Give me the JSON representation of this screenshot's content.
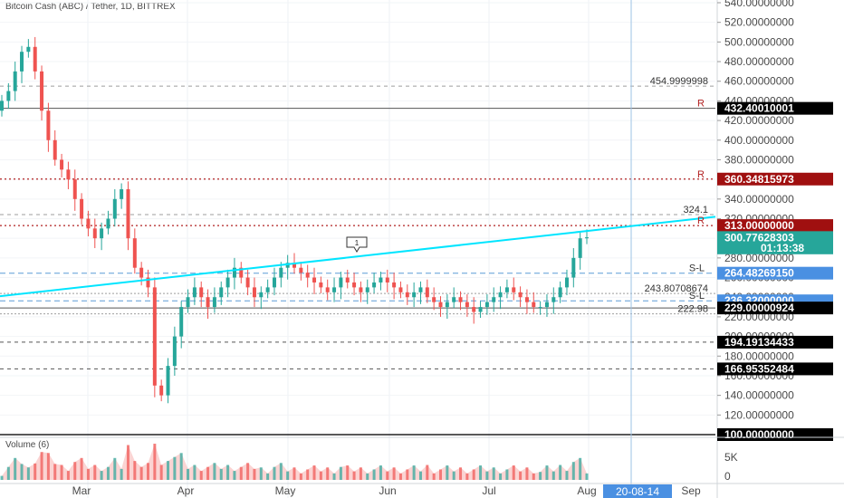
{
  "symbol_title": "Bitcoin Cash (ABC) / Tether, 1D, BITTREX",
  "volume_label": "Volume (6)",
  "colors": {
    "up": "#26a69a",
    "down": "#ef5350",
    "trendline": "#00e5ff",
    "vline": "#9ec3e6",
    "support_blue": "#5b9bd5",
    "resistance": "#b22222",
    "badge_green": "#26a69a",
    "badge_blue": "#4a90e2",
    "badge_black": "#000000",
    "badge_red": "#a01010"
  },
  "price_axis": {
    "min": 100,
    "max": 540,
    "ticks": [
      "540.00000000",
      "520.00000000",
      "500.00000000",
      "480.00000000",
      "460.00000000",
      "440.00000000",
      "420.00000000",
      "400.00000000",
      "380.00000000",
      "360.00000000",
      "340.00000000",
      "320.00000000",
      "300.00000000",
      "280.00000000",
      "260.00000000",
      "240.00000000",
      "220.00000000",
      "200.00000000",
      "180.00000000",
      "160.00000000",
      "140.00000000",
      "120.00000000",
      "100.00000000"
    ]
  },
  "volume_axis": {
    "ticks": [
      "5K",
      "0"
    ]
  },
  "time_axis": {
    "labels": [
      "Mar",
      "Apr",
      "May",
      "Jun",
      "Jul",
      "Aug",
      "Sep"
    ],
    "cursor_label": "20-08-14"
  },
  "price_badges": [
    {
      "name": "badge-432",
      "text": "432.40010001",
      "price": 432.4,
      "style": "black"
    },
    {
      "name": "badge-360",
      "text": "360.34815973",
      "price": 360.35,
      "style": "red"
    },
    {
      "name": "badge-313",
      "text": "313.00000000",
      "price": 313.0,
      "style": "red"
    },
    {
      "name": "badge-current",
      "text": "300.77628303",
      "price": 300.78,
      "style": "green"
    },
    {
      "name": "badge-countdown",
      "text": "01:13:38",
      "price": 290.2,
      "style": "green"
    },
    {
      "name": "badge-264",
      "text": "264.48269150",
      "price": 264.48,
      "style": "blue"
    },
    {
      "name": "badge-236",
      "text": "236.32000000",
      "price": 236.32,
      "style": "blue"
    },
    {
      "name": "badge-229",
      "text": "229.00000924",
      "price": 229.0,
      "style": "black"
    },
    {
      "name": "badge-194",
      "text": "194.19134433",
      "price": 194.19,
      "style": "black"
    },
    {
      "name": "badge-166",
      "text": "166.95352484",
      "price": 166.95,
      "style": "black"
    },
    {
      "name": "badge-100",
      "text": "100.00000000",
      "price": 100.0,
      "style": "black"
    }
  ],
  "level_labels": [
    {
      "text": "454.9999998",
      "price": 455.0
    },
    {
      "text": "R",
      "price": 432.4
    },
    {
      "text": "R",
      "price": 360.35
    },
    {
      "text": "324.1",
      "price": 324.1
    },
    {
      "text": "R",
      "price": 313.0
    },
    {
      "text": "S-L",
      "price": 264.48
    },
    {
      "text": "243.80708674",
      "price": 243.81
    },
    {
      "text": "S-L",
      "price": 236.32
    },
    {
      "text": "222.98",
      "price": 222.98
    }
  ],
  "callout_label": "1",
  "chart_data": {
    "type": "candlestick",
    "title": "Bitcoin Cash (ABC) / Tether, 1D, BITTREX",
    "ylim": [
      100,
      540
    ],
    "levels": [
      455.0,
      432.4,
      360.35,
      324.1,
      313.0,
      264.48,
      243.81,
      236.32,
      229.0,
      222.98,
      194.19,
      166.95,
      100.0
    ],
    "closes_approx": [
      440,
      450,
      470,
      490,
      495,
      470,
      430,
      400,
      380,
      370,
      360,
      340,
      320,
      310,
      300,
      310,
      320,
      340,
      350,
      300,
      270,
      260,
      250,
      150,
      140,
      170,
      200,
      230,
      240,
      250,
      240,
      230,
      240,
      250,
      260,
      270,
      260,
      250,
      240,
      245,
      250,
      260,
      270,
      275,
      270,
      265,
      260,
      255,
      250,
      245,
      250,
      260,
      255,
      250,
      245,
      250,
      255,
      260,
      255,
      250,
      245,
      240,
      245,
      250,
      240,
      235,
      230,
      235,
      240,
      235,
      230,
      225,
      230,
      235,
      240,
      245,
      250,
      245,
      240,
      235,
      230,
      230,
      235,
      240,
      250,
      260,
      280,
      300,
      301
    ]
  }
}
